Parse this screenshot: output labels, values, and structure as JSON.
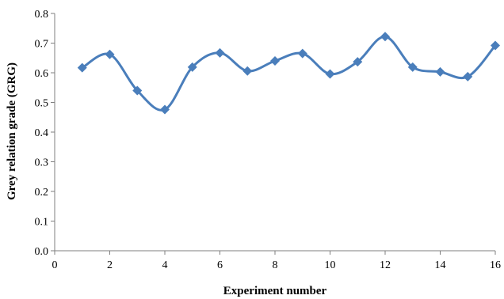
{
  "chart_data": {
    "type": "line",
    "title": "",
    "xlabel": "Experiment number",
    "ylabel": "Grey relation grade (GRG)",
    "xlim": [
      0,
      16
    ],
    "ylim": [
      0.0,
      0.8
    ],
    "x_ticks": [
      "0",
      "2",
      "4",
      "6",
      "8",
      "10",
      "12",
      "14",
      "16"
    ],
    "y_ticks": [
      "0.0",
      "0.1",
      "0.2",
      "0.3",
      "0.4",
      "0.5",
      "0.6",
      "0.7",
      "0.8"
    ],
    "grid": false,
    "legend": "none",
    "line_style": "smoothed",
    "marker": "diamond",
    "color": "#4a7ebb",
    "series": [
      {
        "x": [
          1,
          2,
          3,
          4,
          5,
          6,
          7,
          8,
          9,
          10,
          11,
          12,
          13,
          14,
          15,
          16
        ],
        "values": [
          0.617,
          0.662,
          0.54,
          0.476,
          0.619,
          0.667,
          0.606,
          0.64,
          0.665,
          0.596,
          0.637,
          0.722,
          0.619,
          0.603,
          0.587,
          0.692
        ]
      }
    ]
  }
}
